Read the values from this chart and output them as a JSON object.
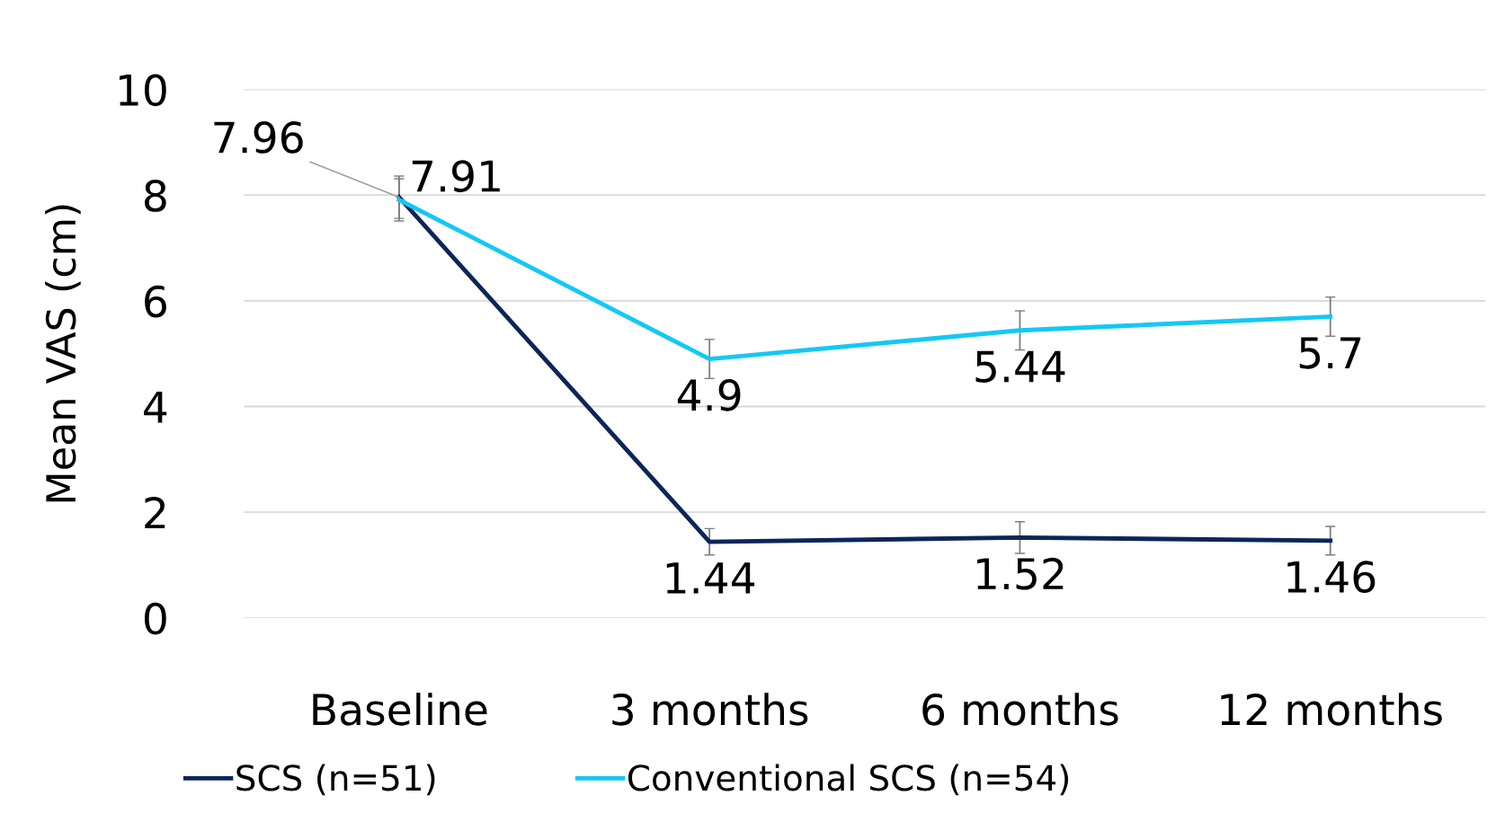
{
  "chart_data": {
    "type": "line",
    "ylabel": "Mean VAS (cm)",
    "categories": [
      "Baseline",
      "3 months",
      "6 months",
      "12 months"
    ],
    "series": [
      {
        "name": "SCS (n=51)",
        "color": "#0c2659",
        "values": [
          7.96,
          1.44,
          1.52,
          1.46
        ],
        "errors": [
          0.4,
          0.25,
          0.3,
          0.27
        ],
        "value_labels": [
          "7.96",
          "1.44",
          "1.52",
          "1.46"
        ]
      },
      {
        "name": "Conventional SCS (n=54)",
        "color": "#14c8f5",
        "values": [
          7.91,
          4.9,
          5.44,
          5.7
        ],
        "errors": [
          0.4,
          0.37,
          0.37,
          0.37
        ],
        "value_labels": [
          "7.91",
          "4.9",
          "5.44",
          "5.7"
        ]
      }
    ],
    "ylim": [
      0,
      10
    ],
    "yticks": [
      0,
      2,
      4,
      6,
      8,
      10
    ],
    "grid": "y",
    "legend": "bottom",
    "marker": "none",
    "line_style": "solid"
  }
}
